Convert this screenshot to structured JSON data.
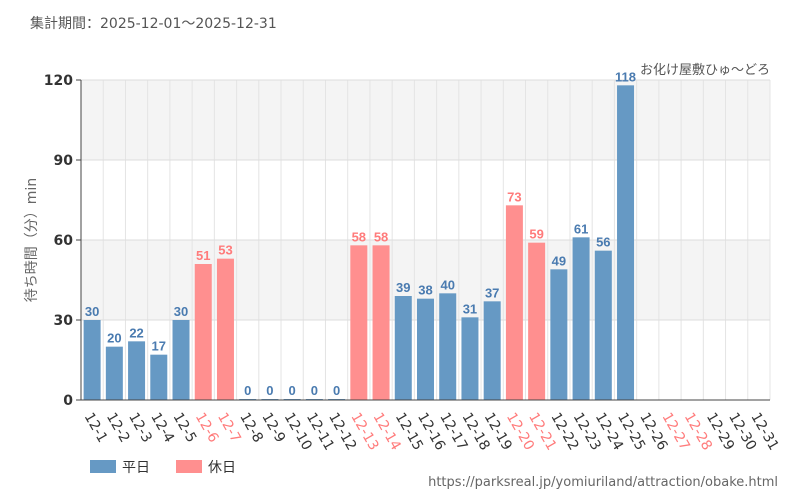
{
  "header": {
    "period": "集計期間：2025-12-01～2025-12-31",
    "attraction": "お化け屋敷ひゅ～どろ"
  },
  "footer": {
    "url": "https://parksreal.jp/yomiuriland/attraction/obake.html"
  },
  "colors": {
    "weekday": "#6699c4",
    "holiday": "#ff8f8f",
    "weekday_label": "#4a7bb0",
    "holiday_label": "#ff7b7b",
    "band": "#f4f4f4"
  },
  "chart_data": {
    "type": "bar",
    "ylabel": "待ち時間（分）min",
    "ylim": [
      0,
      120
    ],
    "yticks": [
      0,
      30,
      60,
      90,
      120
    ],
    "categories": [
      "12-1",
      "12-2",
      "12-3",
      "12-4",
      "12-5",
      "12-6",
      "12-7",
      "12-8",
      "12-9",
      "12-10",
      "12-11",
      "12-12",
      "12-13",
      "12-14",
      "12-15",
      "12-16",
      "12-17",
      "12-18",
      "12-19",
      "12-20",
      "12-21",
      "12-22",
      "12-23",
      "12-24",
      "12-25",
      "12-26",
      "12-27",
      "12-28",
      "12-29",
      "12-30",
      "12-31"
    ],
    "values": [
      30,
      20,
      22,
      17,
      30,
      51,
      53,
      0,
      0,
      0,
      0,
      0,
      58,
      58,
      39,
      38,
      40,
      31,
      37,
      73,
      59,
      49,
      61,
      56,
      118,
      null,
      null,
      null,
      null,
      null,
      null
    ],
    "day_type": [
      "weekday",
      "weekday",
      "weekday",
      "weekday",
      "weekday",
      "holiday",
      "holiday",
      "weekday",
      "weekday",
      "weekday",
      "weekday",
      "weekday",
      "holiday",
      "holiday",
      "weekday",
      "weekday",
      "weekday",
      "weekday",
      "weekday",
      "holiday",
      "holiday",
      "weekday",
      "weekday",
      "weekday",
      "weekday",
      "weekday",
      "holiday",
      "holiday",
      "weekday",
      "weekday",
      "weekday"
    ],
    "legend": [
      {
        "key": "weekday",
        "label": "平日"
      },
      {
        "key": "holiday",
        "label": "休日"
      }
    ]
  }
}
